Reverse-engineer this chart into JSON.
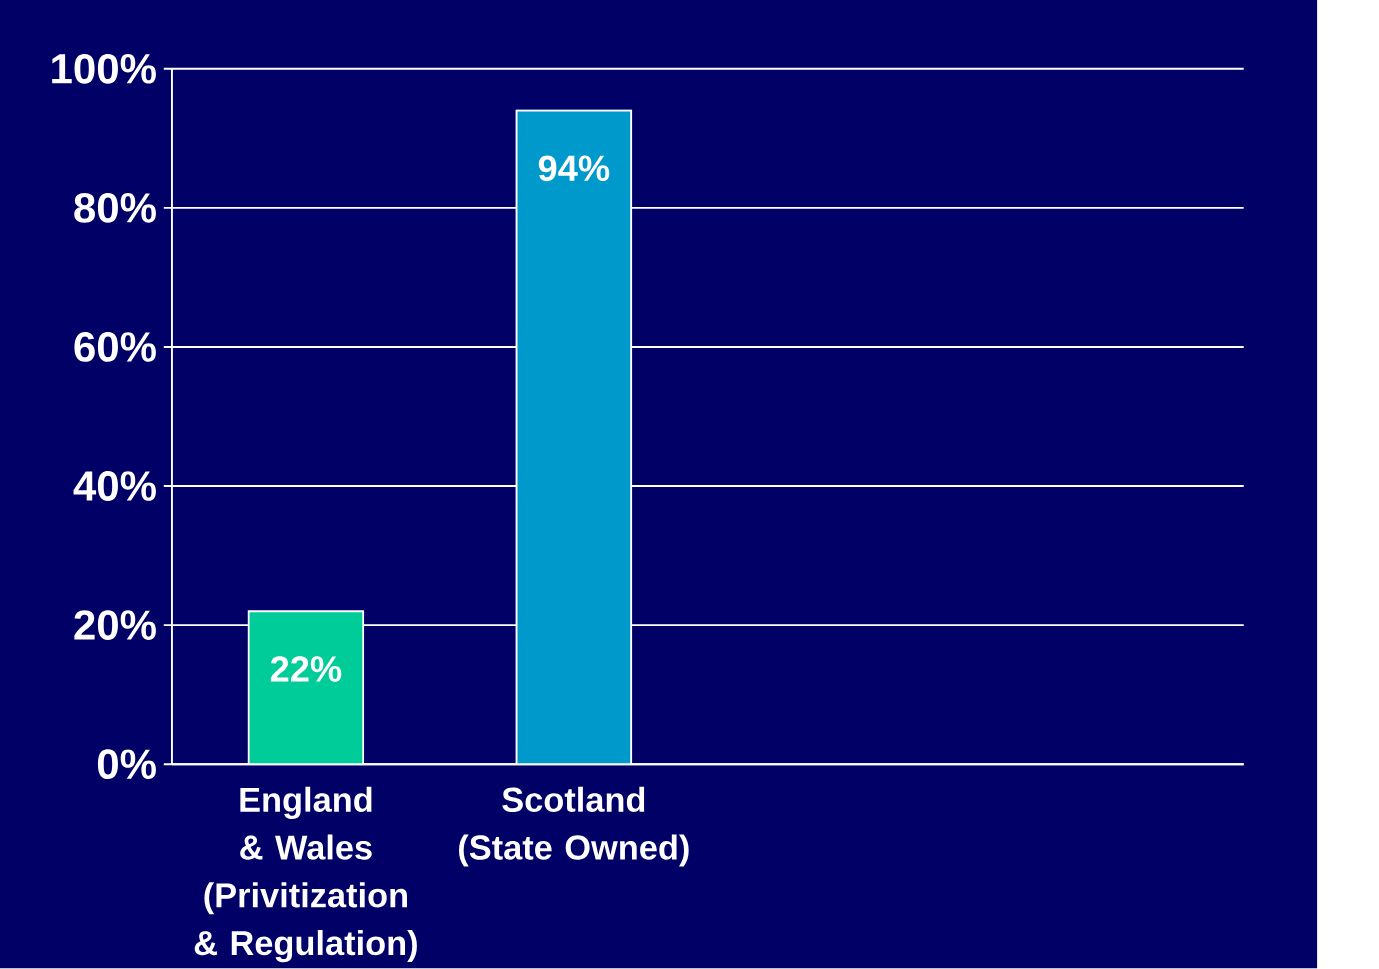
{
  "chart_data": {
    "type": "bar",
    "categories": [
      "England & Wales (Privitization & Regulation)",
      "Scotland (State Owned)",
      null,
      null
    ],
    "values": [
      22,
      94,
      null,
      null
    ],
    "colors": [
      "#00cc99",
      "#0099cc",
      null,
      null
    ],
    "value_labels": [
      "22%",
      "94%",
      null,
      null
    ],
    "ylim": [
      0,
      100
    ],
    "yticks": [
      {
        "value": 0,
        "label": "0%"
      },
      {
        "value": 20,
        "label": "20%"
      },
      {
        "value": 40,
        "label": "40%"
      },
      {
        "value": 60,
        "label": "60%"
      },
      {
        "value": 80,
        "label": "80%"
      },
      {
        "value": 100,
        "label": "100%"
      }
    ],
    "grid": "y"
  }
}
